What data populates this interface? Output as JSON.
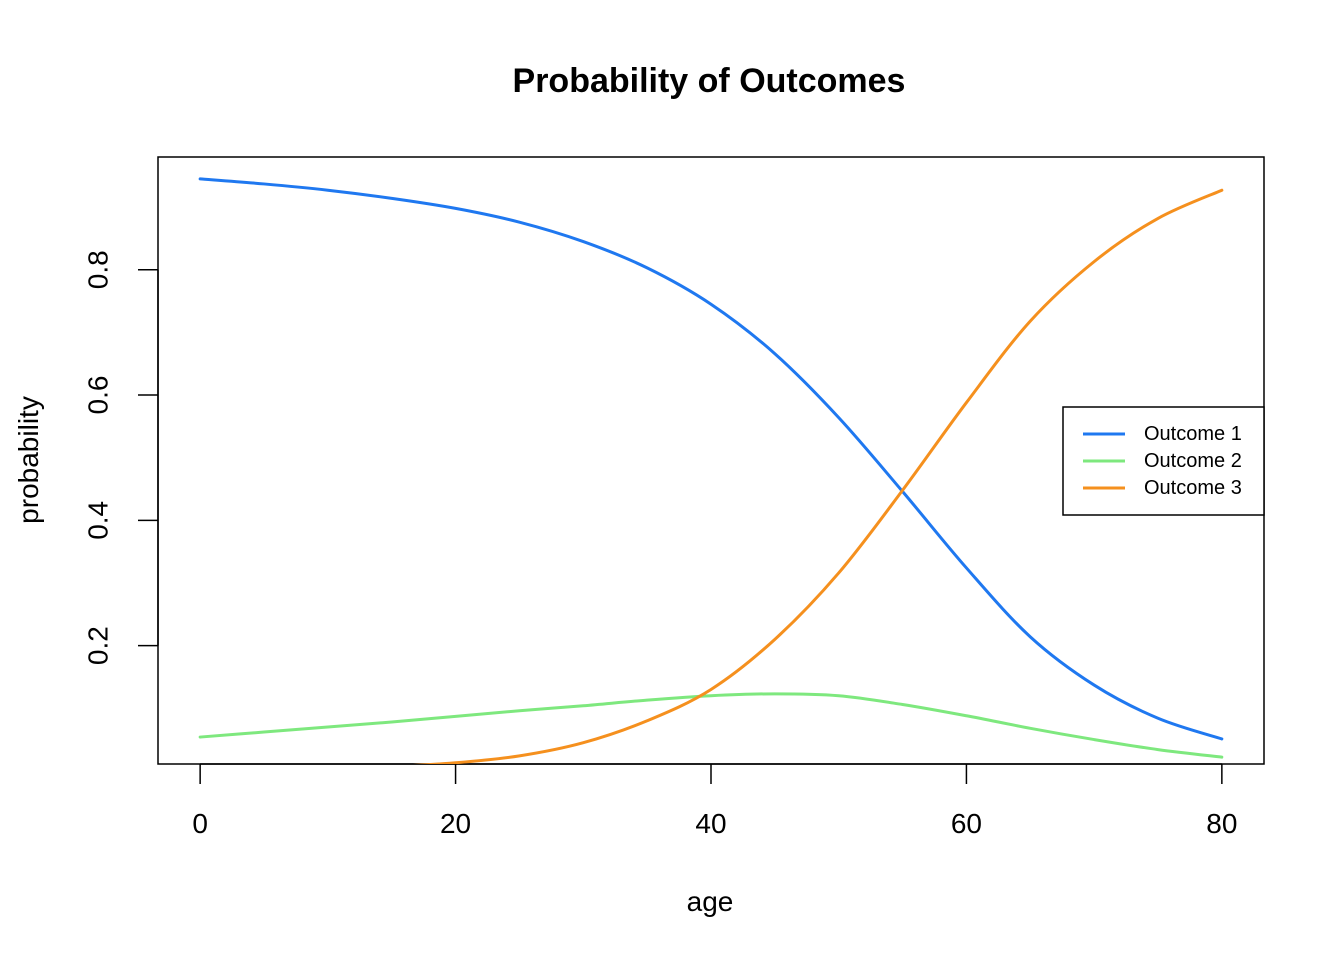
{
  "chart_data": {
    "type": "line",
    "title": "Probability of Outcomes",
    "xlabel": "age",
    "ylabel": "probability",
    "xlim": [
      -3.3,
      83.3
    ],
    "ylim": [
      0.011,
      0.98
    ],
    "x_ticks": [
      0,
      20,
      40,
      60,
      80
    ],
    "y_ticks": [
      0.2,
      0.4,
      0.6,
      0.8
    ],
    "grid": false,
    "legend_position": "right",
    "x": [
      0,
      5,
      10,
      15,
      20,
      25,
      30,
      35,
      40,
      45,
      50,
      55,
      60,
      65,
      70,
      75,
      80
    ],
    "series": [
      {
        "name": "Outcome 1",
        "color": "#1f78f0",
        "values": [
          0.945,
          0.937,
          0.927,
          0.914,
          0.898,
          0.876,
          0.845,
          0.803,
          0.745,
          0.666,
          0.564,
          0.446,
          0.324,
          0.214,
          0.137,
          0.084,
          0.051
        ]
      },
      {
        "name": "Outcome 2",
        "color": "#7ee87e",
        "values": [
          0.054,
          0.062,
          0.07,
          0.078,
          0.087,
          0.096,
          0.104,
          0.113,
          0.12,
          0.123,
          0.12,
          0.106,
          0.088,
          0.068,
          0.05,
          0.034,
          0.022
        ]
      },
      {
        "name": "Outcome 3",
        "color": "#f5901e",
        "values": [
          0.002,
          0.003,
          0.004,
          0.007,
          0.013,
          0.024,
          0.045,
          0.08,
          0.13,
          0.21,
          0.316,
          0.448,
          0.588,
          0.718,
          0.813,
          0.882,
          0.927
        ]
      }
    ]
  }
}
